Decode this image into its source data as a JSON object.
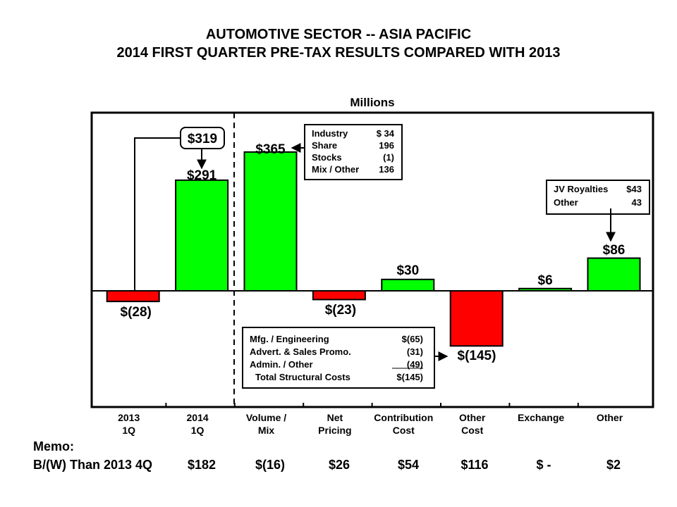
{
  "title_line1": "AUTOMOTIVE SECTOR -- ASIA PACIFIC",
  "title_line2": "2014 FIRST QUARTER PRE-TAX RESULTS COMPARED WITH 2013",
  "chart_data": {
    "type": "bar",
    "subtitle": "Millions",
    "categories": [
      [
        "2013",
        "1Q"
      ],
      [
        "2014",
        "1Q"
      ],
      [
        "Volume /",
        "Mix"
      ],
      [
        "Net",
        "Pricing"
      ],
      [
        "Contribution",
        "Cost"
      ],
      [
        "Other",
        "Cost"
      ],
      [
        "Exchange"
      ],
      [
        "Other"
      ]
    ],
    "values": [
      -28,
      291,
      365,
      -23,
      30,
      -145,
      6,
      86
    ],
    "value_labels": [
      "$(28)",
      "$291",
      "$365",
      "$(23)",
      "$30",
      "$(145)",
      "$6",
      "$86"
    ],
    "colors": {
      "positive": "#00ff00",
      "negative": "#ff0000"
    },
    "ylim": [
      -180,
      430
    ],
    "grid": false,
    "callouts": {
      "total_2014": "$319",
      "volume_mix": [
        {
          "label": "Industry",
          "value": "$ 34"
        },
        {
          "label": "Share",
          "value": "196"
        },
        {
          "label": "Stocks",
          "value": "(1)"
        },
        {
          "label": "Mix / Other",
          "value": "136"
        }
      ],
      "other": [
        {
          "label": "JV Royalties",
          "value": "$43"
        },
        {
          "label": "Other",
          "value": "43"
        }
      ],
      "structural_costs": [
        {
          "label": "Mfg. / Engineering",
          "value": "$(65)"
        },
        {
          "label": "Advert. & Sales Promo.",
          "value": "(31)"
        },
        {
          "label": "Admin. / Other",
          "value": "(49)"
        },
        {
          "label": "Total Structural Costs",
          "value": "$(145)"
        }
      ]
    }
  },
  "memo": {
    "heading": "Memo:",
    "row_label": "B/(W) Than 2013 4Q",
    "values": [
      "$182",
      "$(16)",
      "$26",
      "$54",
      "$116",
      "$ -",
      "$2"
    ]
  }
}
